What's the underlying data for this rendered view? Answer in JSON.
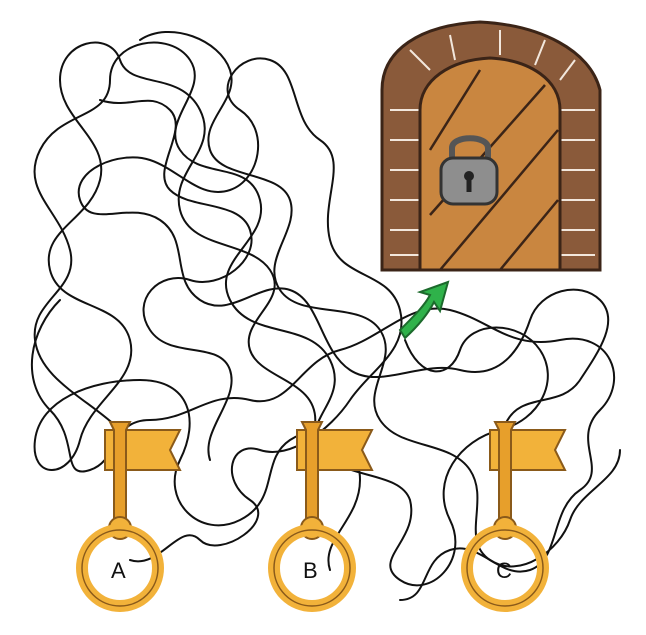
{
  "puzzle": {
    "type": "maze",
    "keys": [
      {
        "id": "key-a",
        "label": "A"
      },
      {
        "id": "key-b",
        "label": "B"
      },
      {
        "id": "key-c",
        "label": "C"
      }
    ],
    "target": "locked-door",
    "colors": {
      "line": "#111111",
      "key_fill": "#f2b23a",
      "key_shade": "#d98e1c",
      "brick": "#8a5a3a",
      "brick_shade": "#6b4129",
      "door_wood": "#c98640",
      "door_wood_dark": "#9d5f25",
      "lock": "#8e8e8e",
      "arrow": "#2fb24a"
    }
  }
}
